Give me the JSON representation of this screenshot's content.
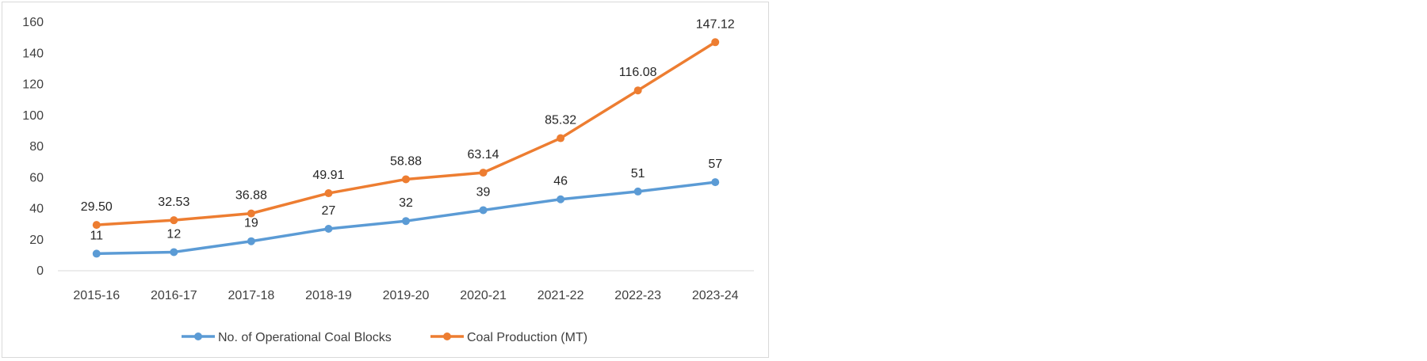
{
  "chart_data": {
    "type": "line",
    "categories": [
      "2015-16",
      "2016-17",
      "2017-18",
      "2018-19",
      "2019-20",
      "2020-21",
      "2021-22",
      "2022-23",
      "2023-24"
    ],
    "series": [
      {
        "name": "No. of Operational Coal Blocks",
        "color": "#5b9bd5",
        "values": [
          11,
          12,
          19,
          27,
          32,
          39,
          46,
          51,
          57
        ],
        "labels": [
          "11",
          "12",
          "19",
          "27",
          "32",
          "39",
          "46",
          "51",
          "57"
        ]
      },
      {
        "name": "Coal Production (MT)",
        "color": "#ed7d31",
        "values": [
          29.5,
          32.53,
          36.88,
          49.91,
          58.88,
          63.14,
          85.32,
          116.08,
          147.12
        ],
        "labels": [
          "29.50",
          "32.53",
          "36.88",
          "49.91",
          "58.88",
          "63.14",
          "85.32",
          "116.08",
          "147.12"
        ]
      }
    ],
    "yticks": [
      "0",
      "20",
      "40",
      "60",
      "80",
      "100",
      "120",
      "140",
      "160"
    ],
    "ylim": [
      0,
      160
    ],
    "title": "",
    "xlabel": "",
    "ylabel": "",
    "grid": false,
    "legend_position": "bottom"
  }
}
